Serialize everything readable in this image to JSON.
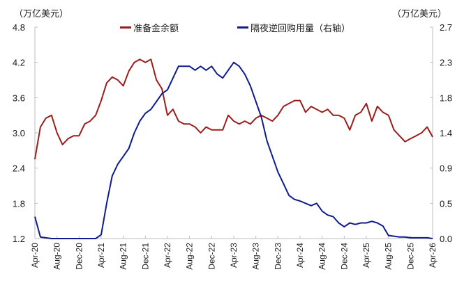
{
  "chart_data": {
    "type": "line",
    "title": "",
    "left_unit": "（万亿美元）",
    "right_unit": "（万亿美元）",
    "xlabel": "",
    "ylabel_left": "万亿美元",
    "ylabel_right": "万亿美元",
    "ylim_left": [
      1.2,
      4.8
    ],
    "ylim_right": [
      0.0,
      2.7
    ],
    "left_ticks": [
      "4.8",
      "4.2",
      "3.6",
      "3.0",
      "2.4",
      "1.8",
      "1.2"
    ],
    "right_ticks": [
      "2.7",
      "2.3",
      "1.8",
      "1.4",
      "0.9",
      "0.5",
      "0.0"
    ],
    "x_tick_labels": [
      "Apr-20",
      "Aug-20",
      "Dec-20",
      "Apr-21",
      "Aug-21",
      "Dec-21",
      "Apr-22",
      "Aug-22",
      "Dec-22",
      "Apr-23",
      "Aug-23",
      "Dec-23",
      "Apr-24",
      "Aug-24",
      "Dec-24",
      "Apr-25",
      "Aug-25",
      "Dec-25",
      "Apr-26"
    ],
    "grid": false,
    "legend_position": "top",
    "x": [
      "2020-04",
      "2020-05",
      "2020-06",
      "2020-07",
      "2020-08",
      "2020-09",
      "2020-10",
      "2020-11",
      "2020-12",
      "2021-01",
      "2021-02",
      "2021-03",
      "2021-04",
      "2021-05",
      "2021-06",
      "2021-07",
      "2021-08",
      "2021-09",
      "2021-10",
      "2021-11",
      "2021-12",
      "2022-01",
      "2022-02",
      "2022-03",
      "2022-04",
      "2022-05",
      "2022-06",
      "2022-07",
      "2022-08",
      "2022-09",
      "2022-10",
      "2022-11",
      "2022-12",
      "2023-01",
      "2023-02",
      "2023-03",
      "2023-04",
      "2023-05",
      "2023-06",
      "2023-07",
      "2023-08",
      "2023-09",
      "2023-10",
      "2023-11",
      "2023-12",
      "2024-01",
      "2024-02",
      "2024-03",
      "2024-04",
      "2024-05",
      "2024-06",
      "2024-07",
      "2024-08",
      "2024-09",
      "2024-10",
      "2024-11",
      "2024-12",
      "2025-01",
      "2025-02",
      "2025-03",
      "2025-04",
      "2025-05",
      "2025-06",
      "2025-07",
      "2025-08",
      "2025-09",
      "2025-10",
      "2025-11",
      "2025-12",
      "2026-01",
      "2026-02",
      "2026-03",
      "2026-04"
    ],
    "series": [
      {
        "name": "准备金余额",
        "axis": "left",
        "color": "#9b1c1c",
        "values": [
          2.55,
          3.1,
          3.25,
          3.3,
          3.0,
          2.8,
          2.9,
          2.95,
          2.95,
          3.15,
          3.2,
          3.3,
          3.55,
          3.85,
          3.95,
          3.9,
          3.8,
          4.05,
          4.2,
          4.25,
          4.2,
          4.25,
          3.9,
          3.75,
          3.3,
          3.4,
          3.2,
          3.15,
          3.15,
          3.1,
          3.0,
          3.1,
          3.05,
          3.05,
          3.05,
          3.3,
          3.2,
          3.15,
          3.2,
          3.15,
          3.25,
          3.3,
          3.25,
          3.2,
          3.3,
          3.45,
          3.5,
          3.55,
          3.55,
          3.35,
          3.45,
          3.4,
          3.35,
          3.4,
          3.3,
          3.3,
          3.25,
          3.05,
          3.3,
          3.35,
          3.5,
          3.2,
          3.45,
          3.35,
          3.3,
          3.05,
          2.95,
          2.85,
          2.9,
          2.95,
          3.0,
          3.1,
          2.93
        ]
      },
      {
        "name": "隔夜逆回购用量（右轴）",
        "axis": "right",
        "color": "#0d1b8c",
        "values": [
          0.28,
          0.02,
          0.01,
          0.0,
          0.0,
          0.0,
          0.0,
          0.0,
          0.0,
          0.0,
          0.0,
          0.0,
          0.05,
          0.45,
          0.8,
          0.95,
          1.05,
          1.15,
          1.35,
          1.5,
          1.6,
          1.65,
          1.75,
          1.85,
          1.9,
          2.05,
          2.2,
          2.2,
          2.2,
          2.15,
          2.2,
          2.15,
          2.2,
          2.1,
          2.05,
          2.15,
          2.25,
          2.2,
          2.1,
          1.95,
          1.75,
          1.55,
          1.25,
          1.05,
          0.85,
          0.7,
          0.55,
          0.5,
          0.48,
          0.45,
          0.42,
          0.45,
          0.35,
          0.3,
          0.28,
          0.2,
          0.15,
          0.2,
          0.18,
          0.2,
          0.2,
          0.22,
          0.2,
          0.16,
          0.04,
          0.03,
          0.02,
          0.02,
          0.01,
          0.01,
          0.01,
          0.01,
          0.0
        ]
      }
    ]
  },
  "legend": {
    "reserve_label": "准备金余额",
    "rrp_label": "隔夜逆回购用量（右轴）"
  }
}
